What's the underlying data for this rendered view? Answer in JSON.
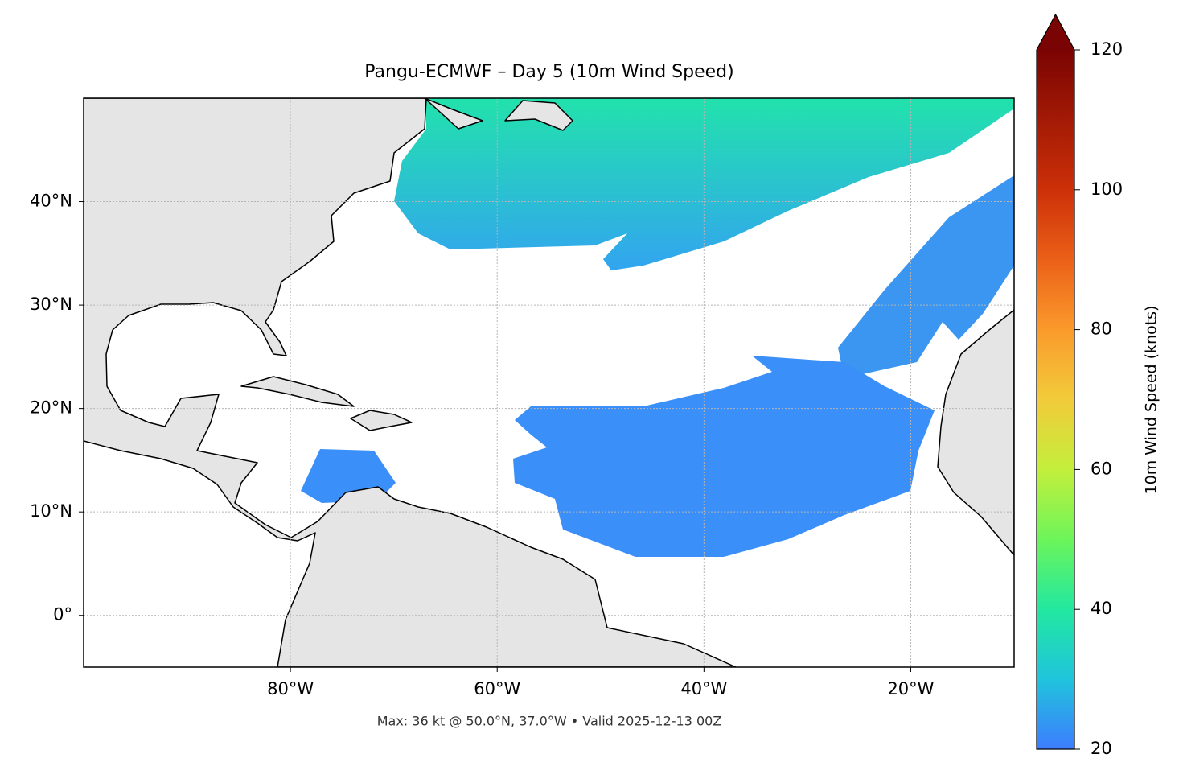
{
  "chart_data": {
    "type": "map",
    "title": "Pangu-ECMWF – Day 5 (10m Wind Speed)",
    "footer": "Max: 36 kt @ 50.0°N, 37.0°W • Valid 2025-12-13 00Z",
    "xlim": [
      -100,
      -10
    ],
    "ylim": [
      -5,
      50
    ],
    "xticks": [
      {
        "value": -80,
        "label": "80°W"
      },
      {
        "value": -60,
        "label": "60°W"
      },
      {
        "value": -40,
        "label": "40°W"
      },
      {
        "value": -20,
        "label": "20°W"
      }
    ],
    "yticks": [
      {
        "value": 0,
        "label": "0°"
      },
      {
        "value": 10,
        "label": "10°N"
      },
      {
        "value": 20,
        "label": "20°N"
      },
      {
        "value": 30,
        "label": "30°N"
      },
      {
        "value": 40,
        "label": "40°N"
      }
    ],
    "grid": true,
    "colorbar": {
      "label": "10m Wind Speed (knots)",
      "lim": [
        20,
        120
      ],
      "ticks": [
        20,
        40,
        60,
        80,
        100,
        120
      ]
    }
  }
}
